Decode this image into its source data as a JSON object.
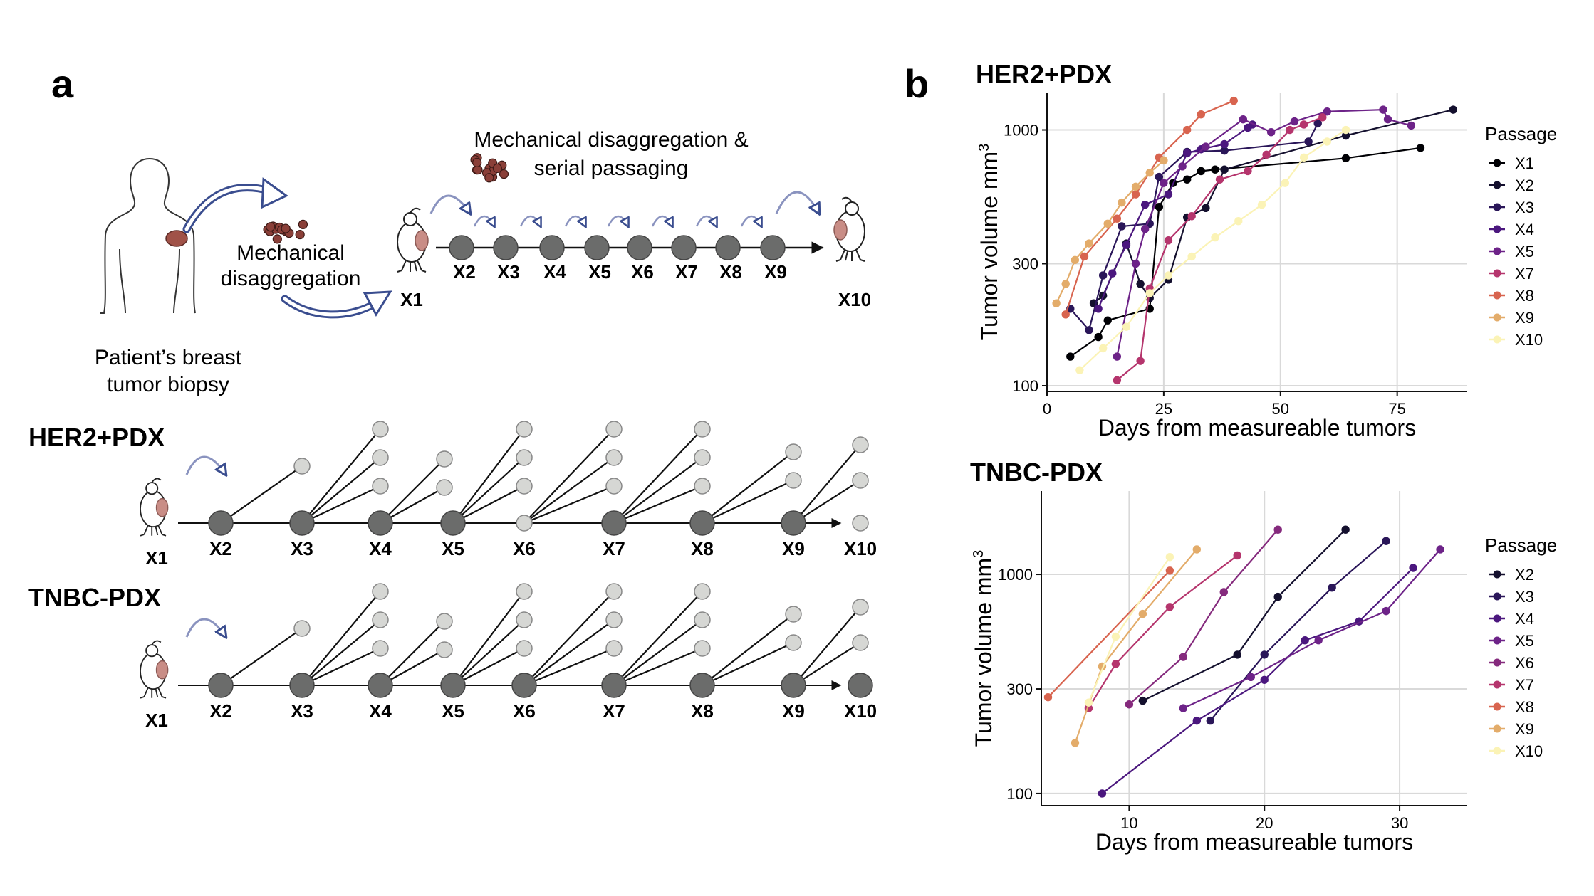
{
  "panel_a": {
    "letter": "a",
    "top_caption_line1": "Mechanical disaggregation &",
    "top_caption_line2": "serial passaging",
    "mech_line1": "Mechanical",
    "mech_line2": "disaggregation",
    "patient_line1": "Patient’s breast",
    "patient_line2": "tumor biopsy",
    "node_labels": [
      "X2",
      "X3",
      "X4",
      "X5",
      "X6",
      "X7",
      "X8",
      "X9"
    ],
    "x1_label": "X1",
    "x10_label": "X10",
    "lineage_labels": [
      "X2",
      "X3",
      "X4",
      "X5",
      "X6",
      "X7",
      "X8",
      "X9",
      "X10"
    ],
    "her2_title": "HER2+PDX",
    "tnbc_title": "TNBC-PDX",
    "colors": {
      "node": "#6b6c6b",
      "branch": "#d6d7d4",
      "arrow": "#3a4d8f",
      "tumor": "#c98d86"
    }
  },
  "panel_b": {
    "letter": "b",
    "legend_title": "Passage",
    "palette": {
      "X1": "#000004",
      "X2": "#14102e",
      "X3": "#2a1659",
      "X4": "#4b177e",
      "X5": "#6d2388",
      "X6": "#852a7d",
      "X7": "#b5356d",
      "X8": "#d8644f",
      "X9": "#e3ac6a",
      "X10": "#fbf3b6"
    }
  },
  "chart_data": [
    {
      "type": "line",
      "title": "HER2+PDX",
      "xlabel": "Days from measureable tumors",
      "ylabel": "Tumor volume mm3",
      "ylabel_main": "Tumor volume mm",
      "ylabel_sup": "3",
      "y_scale": "log",
      "xlim": [
        0,
        90
      ],
      "ylim": [
        95,
        1400
      ],
      "xticks": [
        0,
        25,
        50,
        75
      ],
      "yticks": [
        100,
        300,
        1000
      ],
      "grid": true,
      "legend": "right",
      "series": [
        {
          "name": "X1",
          "points": [
            [
              5,
              130
            ],
            [
              11,
              155
            ],
            [
              13,
              180
            ],
            [
              22,
              200
            ],
            [
              24,
              500
            ],
            [
              27,
              620
            ],
            [
              30,
              640
            ],
            [
              33,
              690
            ],
            [
              36,
              700
            ],
            [
              64,
              775
            ],
            [
              80,
              850
            ]
          ]
        },
        {
          "name": "X2",
          "points": [
            [
              10,
              210
            ],
            [
              12,
              225
            ],
            [
              17,
              360
            ],
            [
              20,
              250
            ],
            [
              22,
              220
            ],
            [
              26,
              260
            ],
            [
              30,
              455
            ],
            [
              34,
              495
            ],
            [
              38,
              700
            ],
            [
              64,
              950
            ],
            [
              87,
              1200
            ]
          ]
        },
        {
          "name": "X3",
          "points": [
            [
              5,
              200
            ],
            [
              9,
              165
            ],
            [
              12,
              270
            ],
            [
              16,
              420
            ],
            [
              22,
              430
            ],
            [
              24,
              655
            ],
            [
              30,
              820
            ],
            [
              38,
              830
            ],
            [
              56,
              900
            ],
            [
              58,
              1060
            ]
          ]
        },
        {
          "name": "X4",
          "points": [
            [
              11,
              200
            ],
            [
              14,
              275
            ],
            [
              17,
              355
            ],
            [
              21,
              510
            ],
            [
              26,
              560
            ],
            [
              30,
              810
            ],
            [
              33,
              840
            ],
            [
              38,
              880
            ],
            [
              43,
              1020
            ],
            [
              44,
              1050
            ]
          ]
        },
        {
          "name": "X5",
          "points": [
            [
              15,
              130
            ],
            [
              19,
              300
            ],
            [
              21,
              410
            ],
            [
              25,
              620
            ],
            [
              29,
              720
            ],
            [
              34,
              860
            ],
            [
              42,
              1100
            ],
            [
              48,
              980
            ],
            [
              53,
              1080
            ],
            [
              60,
              1180
            ],
            [
              72,
              1200
            ],
            [
              73,
              1100
            ],
            [
              78,
              1040
            ]
          ]
        },
        {
          "name": "X7",
          "points": [
            [
              15,
              105
            ],
            [
              20,
              125
            ],
            [
              22,
              240
            ],
            [
              26,
              370
            ],
            [
              31,
              460
            ],
            [
              37,
              640
            ],
            [
              43,
              690
            ],
            [
              47,
              800
            ],
            [
              52,
              1000
            ],
            [
              55,
              1050
            ],
            [
              59,
              1120
            ]
          ]
        },
        {
          "name": "X8",
          "points": [
            [
              4,
              190
            ],
            [
              8,
              320
            ],
            [
              15,
              450
            ],
            [
              19,
              560
            ],
            [
              24,
              780
            ],
            [
              30,
              1000
            ],
            [
              33,
              1150
            ],
            [
              40,
              1300
            ]
          ]
        },
        {
          "name": "X9",
          "points": [
            [
              2,
              210
            ],
            [
              4,
              250
            ],
            [
              6,
              310
            ],
            [
              9,
              360
            ],
            [
              13,
              430
            ],
            [
              16,
              520
            ],
            [
              19,
              600
            ],
            [
              22,
              680
            ],
            [
              25,
              760
            ]
          ]
        },
        {
          "name": "X10",
          "points": [
            [
              7,
              115
            ],
            [
              12,
              140
            ],
            [
              17,
              170
            ],
            [
              22,
              230
            ],
            [
              26,
              270
            ],
            [
              31,
              320
            ],
            [
              36,
              380
            ],
            [
              41,
              440
            ],
            [
              46,
              510
            ],
            [
              51,
              620
            ],
            [
              55,
              780
            ],
            [
              60,
              900
            ],
            [
              64,
              1000
            ]
          ]
        }
      ]
    },
    {
      "type": "line",
      "title": "TNBC-PDX",
      "xlabel": "Days from measureable tumors",
      "ylabel": "Tumor volume mm3",
      "ylabel_main": "Tumor volume mm",
      "ylabel_sup": "3",
      "y_scale": "log",
      "xlim": [
        3.5,
        35
      ],
      "ylim": [
        88,
        2400
      ],
      "xticks": [
        10,
        20,
        30
      ],
      "yticks": [
        100,
        300,
        1000
      ],
      "grid": true,
      "legend": "right",
      "series": [
        {
          "name": "X2",
          "points": [
            [
              11,
              265
            ],
            [
              18,
              430
            ],
            [
              21,
              790
            ],
            [
              26,
              1600
            ]
          ]
        },
        {
          "name": "X3",
          "points": [
            [
              16,
              215
            ],
            [
              20,
              430
            ],
            [
              25,
              870
            ],
            [
              29,
              1420
            ]
          ]
        },
        {
          "name": "X4",
          "points": [
            [
              8,
              100
            ],
            [
              15,
              215
            ],
            [
              20,
              330
            ],
            [
              23,
              500
            ],
            [
              27,
              610
            ],
            [
              31,
              1070
            ]
          ]
        },
        {
          "name": "X5",
          "points": [
            [
              14,
              245
            ],
            [
              19,
              340
            ],
            [
              24,
              500
            ],
            [
              29,
              680
            ],
            [
              33,
              1300
            ]
          ]
        },
        {
          "name": "X6",
          "points": [
            [
              10,
              255
            ],
            [
              14,
              420
            ],
            [
              17,
              830
            ],
            [
              21,
              1600
            ]
          ]
        },
        {
          "name": "X7",
          "points": [
            [
              7,
              245
            ],
            [
              9,
              390
            ],
            [
              13,
              710
            ],
            [
              18,
              1220
            ]
          ]
        },
        {
          "name": "X8",
          "points": [
            [
              4,
              275
            ],
            [
              13,
              1040
            ]
          ]
        },
        {
          "name": "X9",
          "points": [
            [
              6,
              170
            ],
            [
              8,
              380
            ],
            [
              11,
              660
            ],
            [
              15,
              1300
            ]
          ]
        },
        {
          "name": "X10",
          "points": [
            [
              7,
              260
            ],
            [
              9,
              520
            ],
            [
              13,
              1200
            ]
          ]
        }
      ]
    }
  ]
}
